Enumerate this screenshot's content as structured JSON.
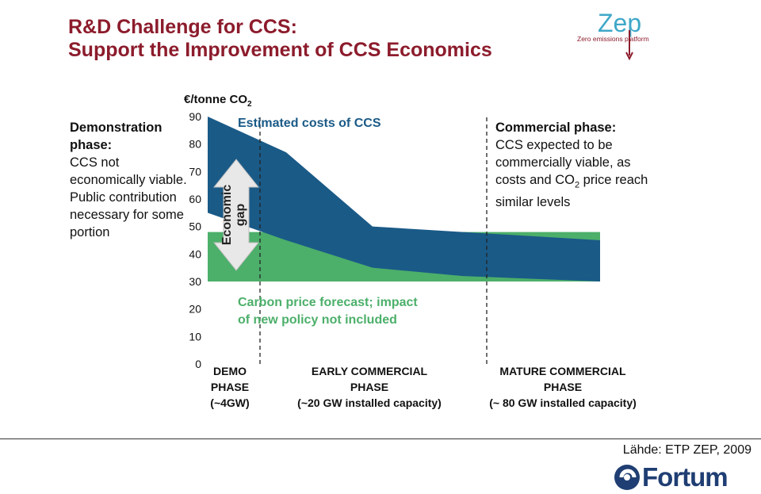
{
  "slide": {
    "title_line1": "R&D Challenge for CCS:",
    "title_line2": "Support the Improvement of CCS Economics",
    "zep_logo_text": "Zep",
    "zep_tagline": "Zero emissions platform",
    "source": "Lähde: ETP ZEP, 2009",
    "company_logo_text": "Fortum",
    "colors": {
      "title": "#8c1c2c",
      "ccs": "#1a5a87",
      "carbon": "#4caf6a",
      "brand": "#1f3e73"
    }
  },
  "notes": {
    "left_head": "Demonstration phase:",
    "left_body": "CCS not economically viable. Public contribution necessary for some portion",
    "right_head": "Commercial phase:",
    "right_body_1": "CCS expected to be commercially viable, as costs and CO",
    "right_body_sub": "2",
    "right_body_2": " price reach similar levels"
  },
  "chart_data": {
    "type": "area",
    "y_unit_label": "€/tonne CO",
    "y_unit_sub": "2",
    "ylim": [
      0,
      90
    ],
    "yticks": [
      0,
      10,
      20,
      30,
      40,
      50,
      60,
      70,
      80,
      90
    ],
    "x": [
      0,
      0.2,
      0.42,
      0.65,
      1.0
    ],
    "series": [
      {
        "name": "Estimated costs of CCS",
        "color": "#1a5a87",
        "upper": [
          90,
          77,
          50,
          48,
          45
        ],
        "lower": [
          55,
          45,
          35,
          32,
          30
        ]
      },
      {
        "name": "Carbon price forecast; impact of new policy not included",
        "color": "#4caf6a",
        "upper": [
          48,
          48,
          40,
          48,
          48
        ],
        "lower": [
          30,
          30,
          30,
          30,
          30
        ]
      }
    ],
    "series_label_ccs": "Estimated costs of CCS",
    "series_label_carbon_1": "Carbon price forecast; impact",
    "series_label_carbon_2": "of new policy not included",
    "gap_label_1": "Economic",
    "gap_label_2": "gap",
    "phase_labels": [
      {
        "line1": "DEMO",
        "line2": "PHASE",
        "line3": "(~4GW)"
      },
      {
        "line1": "EARLY COMMERCIAL",
        "line2": "PHASE",
        "line3": "(~20 GW installed capacity)"
      },
      {
        "line1": "MATURE COMMERCIAL",
        "line2": "PHASE",
        "line3": "(~ 80 GW installed capacity)"
      }
    ]
  }
}
